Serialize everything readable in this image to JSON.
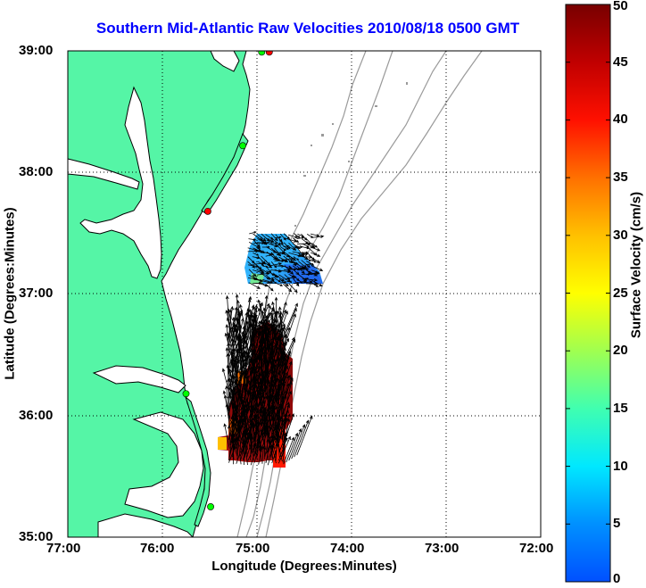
{
  "title": "Southern Mid-Atlantic Raw Velocities 2010/08/18 0500 GMT",
  "xlabel": "Longitude (Degrees:Minutes)",
  "ylabel": "Latitude (Degrees:Minutes)",
  "colorbar": {
    "label": "Surface Velocity (cm/s)",
    "min": 0,
    "max": 50,
    "ticks": [
      "0",
      "5",
      "10",
      "15",
      "20",
      "25",
      "30",
      "35",
      "40",
      "45",
      "50"
    ]
  },
  "map": {
    "xlim": [
      -77,
      -72
    ],
    "ylim": [
      35,
      39
    ],
    "x_ticks": [
      "77:00",
      "76:00",
      "75:00",
      "74:00",
      "73:00",
      "72:00"
    ],
    "y_ticks": [
      "39:00",
      "38:00",
      "37:00",
      "36:00",
      "35:00"
    ],
    "grid": "dotted",
    "land_color": "#55f5a6",
    "water_color": "#ffffff",
    "bathymetry_color": "#9a9a9a"
  },
  "chart_data": {
    "type": "heatmap",
    "title": "Southern Mid-Atlantic Raw Velocities 2010/08/18 0500 GMT",
    "xlabel": "Longitude (Degrees:Minutes)",
    "ylabel": "Latitude (Degrees:Minutes)",
    "xlim": [
      -77,
      -72
    ],
    "ylim": [
      35,
      39
    ],
    "color_range": [
      0,
      50
    ],
    "units": "cm/s",
    "regions": [
      {
        "lon_range": [
          -75.1,
          -74.4
        ],
        "lat_range": [
          37.08,
          37.5
        ],
        "speed_range": [
          5,
          15
        ],
        "mean_direction_deg": 110
      },
      {
        "lon_range": [
          -75.3,
          -74.7
        ],
        "lat_range": [
          35.6,
          36.7
        ],
        "speed_range": [
          30,
          50
        ],
        "mean_direction_deg": 5
      }
    ],
    "stations": [
      {
        "lon": -74.87,
        "lat": 38.99,
        "color": "#ff0000"
      },
      {
        "lon": -74.95,
        "lat": 38.99,
        "color": "#00ff00"
      },
      {
        "lon": -75.15,
        "lat": 38.22,
        "color": "#00ff00"
      },
      {
        "lon": -75.52,
        "lat": 37.68,
        "color": "#ff0000"
      },
      {
        "lon": -75.75,
        "lat": 36.18,
        "color": "#00ff00"
      },
      {
        "lon": -75.49,
        "lat": 35.25,
        "color": "#00ff00"
      }
    ]
  }
}
